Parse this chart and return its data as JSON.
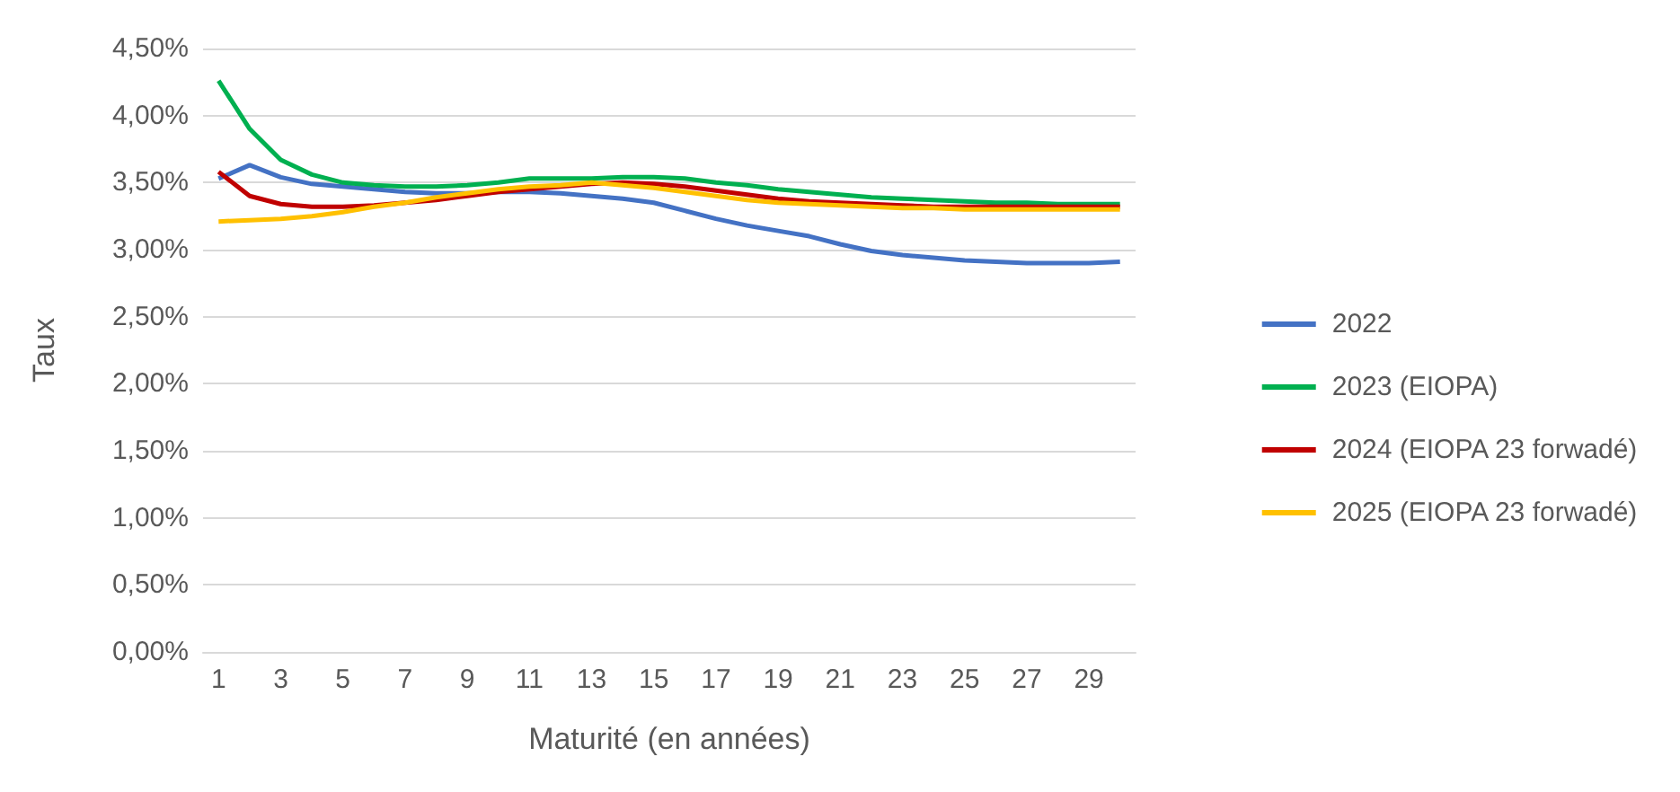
{
  "chart_data": {
    "type": "line",
    "xlabel": "Maturité (en années)",
    "ylabel": "Taux",
    "x": [
      1,
      2,
      3,
      4,
      5,
      6,
      7,
      8,
      9,
      10,
      11,
      12,
      13,
      14,
      15,
      16,
      17,
      18,
      19,
      20,
      21,
      22,
      23,
      24,
      25,
      26,
      27,
      28,
      29,
      30
    ],
    "xlim": [
      0.5,
      30.5
    ],
    "xticks": [
      1,
      3,
      5,
      7,
      9,
      11,
      13,
      15,
      17,
      19,
      21,
      23,
      25,
      27,
      29
    ],
    "series": [
      {
        "name": "2022",
        "color": "#4472c4",
        "values": [
          3.53,
          3.63,
          3.54,
          3.49,
          3.47,
          3.45,
          3.43,
          3.42,
          3.42,
          3.43,
          3.43,
          3.42,
          3.4,
          3.38,
          3.35,
          3.29,
          3.23,
          3.18,
          3.14,
          3.1,
          3.04,
          2.99,
          2.96,
          2.94,
          2.92,
          2.91,
          2.9,
          2.9,
          2.9,
          2.91
        ]
      },
      {
        "name": "2023 (EIOPA)",
        "color": "#00b050",
        "values": [
          4.26,
          3.9,
          3.67,
          3.56,
          3.5,
          3.48,
          3.47,
          3.47,
          3.48,
          3.5,
          3.53,
          3.53,
          3.53,
          3.54,
          3.54,
          3.53,
          3.5,
          3.48,
          3.45,
          3.43,
          3.41,
          3.39,
          3.38,
          3.37,
          3.36,
          3.35,
          3.35,
          3.34,
          3.34,
          3.34
        ]
      },
      {
        "name": "2024 (EIOPA 23 forwadé)",
        "color": "#c00000",
        "values": [
          3.58,
          3.4,
          3.34,
          3.32,
          3.32,
          3.33,
          3.35,
          3.37,
          3.4,
          3.43,
          3.45,
          3.47,
          3.49,
          3.5,
          3.49,
          3.47,
          3.44,
          3.41,
          3.38,
          3.36,
          3.35,
          3.34,
          3.33,
          3.32,
          3.32,
          3.32,
          3.32,
          3.32,
          3.32,
          3.32
        ]
      },
      {
        "name": "2025 (EIOPA 23 forwadé)",
        "color": "#ffc000",
        "values": [
          3.21,
          3.22,
          3.23,
          3.25,
          3.28,
          3.32,
          3.35,
          3.39,
          3.42,
          3.45,
          3.47,
          3.48,
          3.5,
          3.48,
          3.46,
          3.43,
          3.4,
          3.37,
          3.35,
          3.34,
          3.33,
          3.32,
          3.31,
          3.31,
          3.3,
          3.3,
          3.3,
          3.3,
          3.3,
          3.3
        ]
      }
    ],
    "ylim": [
      0,
      4.5
    ],
    "yticks": [
      {
        "value": 0,
        "label": "0,00%"
      },
      {
        "value": 0.5,
        "label": "0,50%"
      },
      {
        "value": 1,
        "label": "1,00%"
      },
      {
        "value": 1.5,
        "label": "1,50%"
      },
      {
        "value": 2,
        "label": "2,00%"
      },
      {
        "value": 2.5,
        "label": "2,50%"
      },
      {
        "value": 3,
        "label": "3,00%"
      },
      {
        "value": 3.5,
        "label": "3,50%"
      },
      {
        "value": 4,
        "label": "4,00%"
      },
      {
        "value": 4.5,
        "label": "4,50%"
      }
    ],
    "grid": "y",
    "legend": "right",
    "marker": "none",
    "line_style": "solid"
  }
}
